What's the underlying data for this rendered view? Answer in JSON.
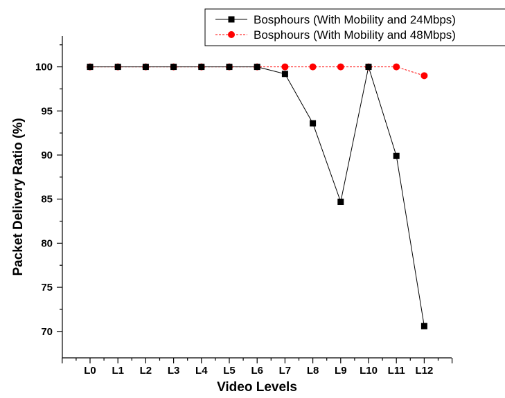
{
  "chart_data": {
    "type": "line",
    "categories": [
      "L0",
      "L1",
      "L2",
      "L3",
      "L4",
      "L5",
      "L6",
      "L7",
      "L8",
      "L9",
      "L10",
      "L11",
      "L12"
    ],
    "series": [
      {
        "name": "Bosphours (With Mobility and 24Mbps)",
        "values": [
          100,
          100,
          100,
          100,
          100,
          100,
          100,
          99.2,
          93.6,
          84.7,
          100,
          89.9,
          70.6
        ],
        "color": "#000000",
        "marker": "square",
        "line_style": "solid"
      },
      {
        "name": "Bosphours (With Mobility and 48Mbps)",
        "values": [
          100,
          100,
          100,
          100,
          100,
          100,
          100,
          100,
          100,
          100,
          100,
          100,
          99.0
        ],
        "color": "#ff0000",
        "marker": "circle",
        "line_style": "dashed"
      }
    ],
    "xlabel": "Video Levels",
    "ylabel": "Packet Delivery Ratio (%)",
    "ylim": [
      67,
      103.5
    ],
    "yticks": [
      70,
      75,
      80,
      85,
      90,
      95,
      100
    ],
    "grid": false,
    "legend_position": "top-right"
  }
}
